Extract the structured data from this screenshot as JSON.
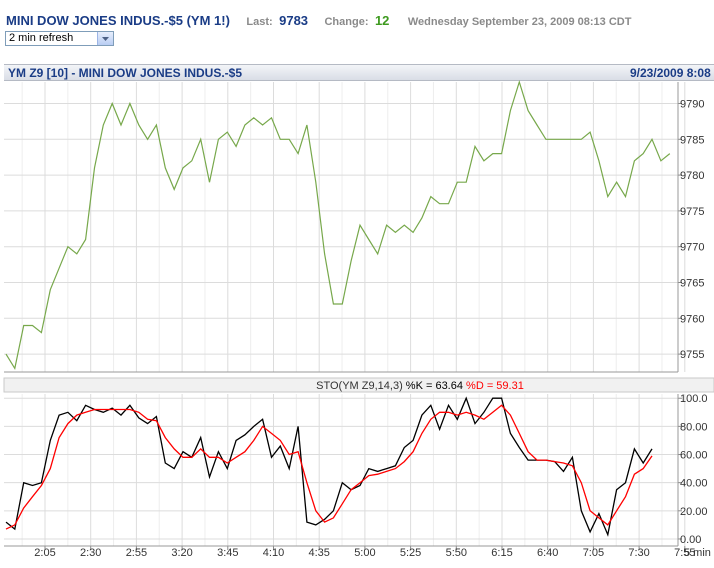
{
  "header": {
    "symbol_title": "MINI DOW JONES INDUS.-$5 (YM 1!)",
    "last_label": "Last:",
    "last_value": "9783",
    "change_label": "Change:",
    "change_value": "12",
    "datetime": "Wednesday September 23, 2009 08:13 CDT"
  },
  "refresh_select": {
    "selected": "2 min refresh"
  },
  "chart_title": {
    "left": "YM Z9 [10] - MINI DOW JONES INDUS.-$5",
    "right": "9/23/2009 8:08"
  },
  "indicator_label": {
    "name": "STO(YM Z9,14,3)",
    "k_text": "%K = 63.64",
    "d_text": "%D = 59.31"
  },
  "colors": {
    "price": "#77a84b",
    "k": "#000000",
    "d": "#ff0000",
    "grid": "#dcdcdc",
    "title": "#1a3c86"
  },
  "chart_data": [
    {
      "type": "line",
      "title": "YM Z9 [10] - MINI DOW JONES INDUS.-$5",
      "ylim": [
        9752.5,
        9793
      ],
      "yticks": [
        "9755",
        "9760",
        "9765",
        "9770",
        "9775",
        "9780",
        "9785",
        "9790"
      ],
      "series": [
        {
          "values": [
            9755,
            9753,
            9759,
            9759,
            9758,
            9764,
            9767,
            9770,
            9769,
            9771,
            9781,
            9787,
            9790,
            9787,
            9790,
            9787,
            9785,
            9787,
            9781,
            9778,
            9781,
            9782,
            9785,
            9779,
            9785,
            9786,
            9784,
            9787,
            9788,
            9787,
            9788,
            9785,
            9785,
            9783,
            9787,
            9779,
            9769,
            9762,
            9762,
            9768,
            9773,
            9771,
            9769,
            9773,
            9772,
            9773,
            9772,
            9774,
            9777,
            9776,
            9776,
            9779,
            9779,
            9784,
            9782,
            9783,
            9783,
            9789,
            9793,
            9789,
            9787,
            9785,
            9785,
            9785,
            9785,
            9785,
            9786,
            9782,
            9777,
            9779,
            9777,
            9782,
            9783,
            9785,
            9782,
            9783
          ]
        }
      ]
    },
    {
      "type": "line",
      "title": "STO(YM Z9,14,3)",
      "ylim": [
        -5,
        103
      ],
      "yticks": [
        "0.00",
        "20.00",
        "40.00",
        "60.00",
        "80.00",
        "100.0"
      ],
      "xticks": [
        "2:05",
        "2:30",
        "2:55",
        "3:20",
        "3:45",
        "4:10",
        "4:35",
        "5:00",
        "5:25",
        "5:50",
        "6:15",
        "6:40",
        "7:05",
        "7:30",
        "7:55"
      ],
      "x_unit_label": "5 min",
      "series": [
        {
          "name": "%K",
          "values": [
            12,
            7,
            40,
            38,
            40,
            70,
            88,
            90,
            84,
            95,
            92,
            90,
            93,
            88,
            95,
            86,
            82,
            87,
            54,
            50,
            62,
            58,
            72,
            44,
            62,
            50,
            70,
            74,
            80,
            85,
            58,
            66,
            50,
            80,
            12,
            10,
            14,
            20,
            40,
            35,
            38,
            50,
            48,
            50,
            52,
            65,
            70,
            88,
            95,
            78,
            95,
            85,
            100,
            82,
            90,
            100,
            100,
            75,
            65,
            56,
            56,
            56,
            55,
            48,
            58,
            20,
            5,
            18,
            3,
            35,
            40,
            64,
            54,
            64
          ],
          "note": ""
        },
        {
          "name": "%D",
          "values": [
            7,
            10,
            22,
            30,
            38,
            50,
            72,
            82,
            88,
            90,
            92,
            92,
            92,
            92,
            92,
            90,
            85,
            84,
            72,
            64,
            58,
            58,
            64,
            58,
            58,
            54,
            58,
            62,
            70,
            80,
            75,
            70,
            60,
            62,
            40,
            20,
            12,
            15,
            25,
            35,
            40,
            45,
            46,
            48,
            50,
            55,
            62,
            75,
            85,
            90,
            90,
            88,
            90,
            88,
            85,
            90,
            95,
            88,
            75,
            62,
            56,
            56,
            55,
            54,
            52,
            40,
            20,
            15,
            10,
            20,
            30,
            46,
            50,
            59
          ]
        }
      ]
    }
  ]
}
